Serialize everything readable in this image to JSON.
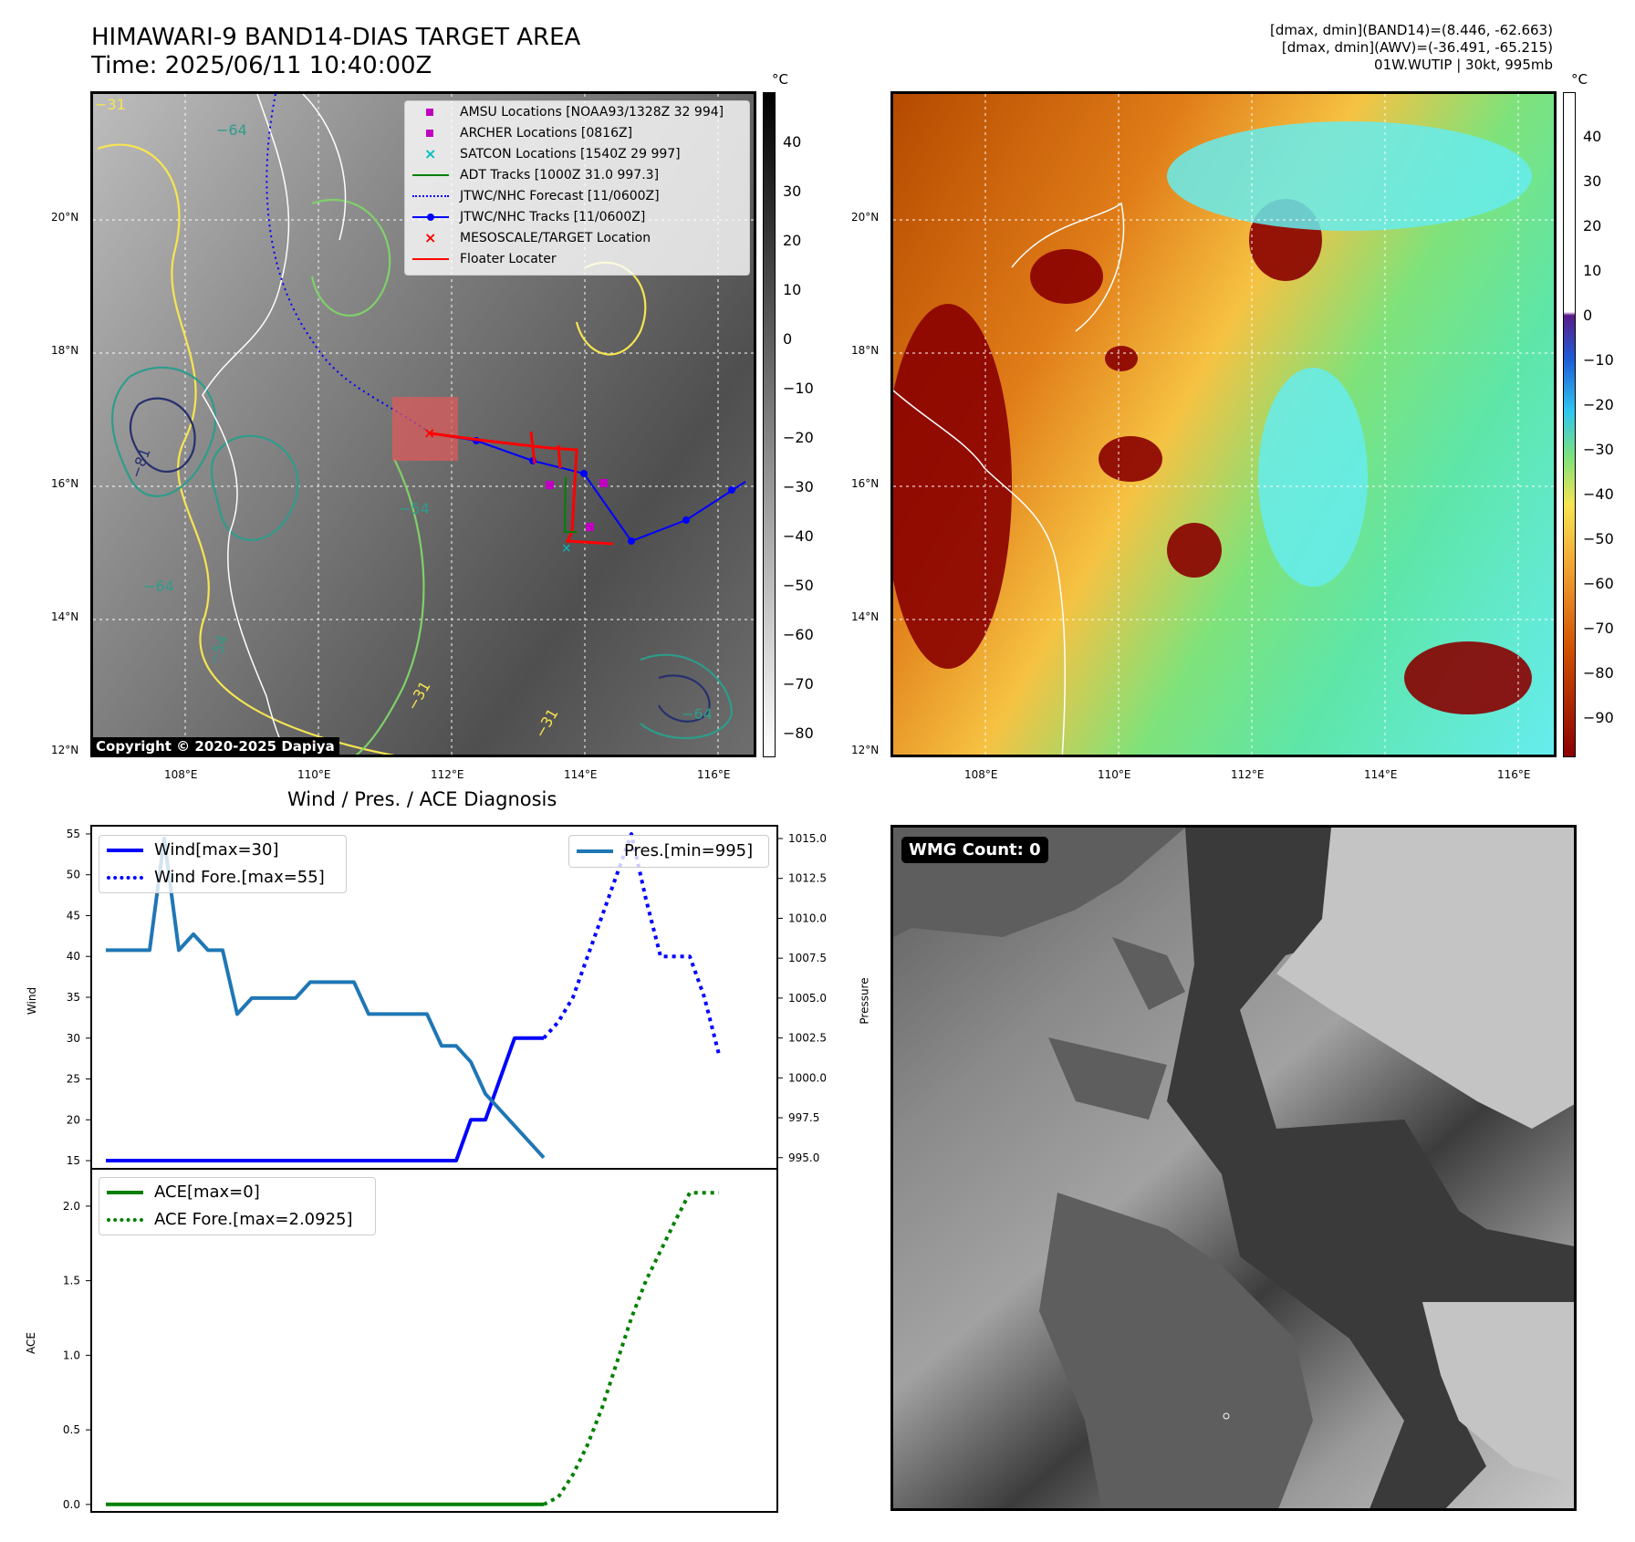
{
  "header": {
    "title_line1": "HIMAWARI-9 BAND14-DIAS TARGET AREA",
    "title_line2": "Time: 2025/06/11 10:40:00Z",
    "info_line1": "[dmax, dmin](BAND14)=(8.446, -62.663)",
    "info_line2": "[dmax, dmin](AWV)=(-36.491, -65.215)",
    "info_line3": "01W.WUTIP | 30kt, 995mb"
  },
  "map_ir": {
    "lat_labels": [
      "20°N",
      "18°N",
      "16°N",
      "14°N",
      "12°N"
    ],
    "lon_labels": [
      "108°E",
      "110°E",
      "112°E",
      "114°E",
      "116°E"
    ],
    "colorbar_unit": "°C",
    "colorbar_ticks": [
      "40",
      "30",
      "20",
      "10",
      "0",
      "−10",
      "−20",
      "−30",
      "−40",
      "−50",
      "−60",
      "−70",
      "−80"
    ],
    "colorbar_colors": [
      "#000000",
      "#ffffff"
    ],
    "copyright": "Copyright © 2020-2025 Dapiya",
    "contour_labels": [
      "−31",
      "−64",
      "−54",
      "−81",
      "−64",
      "−54",
      "−64",
      "−31",
      "−31"
    ],
    "legend": [
      {
        "label": "AMSU Locations [NOAA93/1328Z 32 994]",
        "symbol": "square",
        "color": "#bf00bf"
      },
      {
        "label": "ARCHER Locations [0816Z]",
        "symbol": "square",
        "color": "#bf00bf"
      },
      {
        "label": "SATCON Locations [1540Z 29 997]",
        "symbol": "x",
        "color": "#00bfbf"
      },
      {
        "label": "ADT Tracks [1000Z 31.0 997.3]",
        "symbol": "line",
        "color": "#008000"
      },
      {
        "label": "JTWC/NHC Forecast [11/0600Z]",
        "symbol": "dotted",
        "color": "#0000ff"
      },
      {
        "label": "JTWC/NHC Tracks [11/0600Z]",
        "symbol": "line-dot",
        "color": "#0000ff"
      },
      {
        "label": "MESOSCALE/TARGET Location",
        "symbol": "x",
        "color": "#ff0000"
      },
      {
        "label": "Floater Locater",
        "symbol": "line",
        "color": "#ff0000"
      }
    ]
  },
  "map_awv": {
    "lat_labels": [
      "20°N",
      "18°N",
      "16°N",
      "14°N",
      "12°N"
    ],
    "lon_labels": [
      "108°E",
      "110°E",
      "112°E",
      "114°E",
      "116°E"
    ],
    "colorbar_unit": "°C",
    "colorbar_ticks": [
      "40",
      "30",
      "20",
      "10",
      "0",
      "−10",
      "−20",
      "−30",
      "−40",
      "−50",
      "−60",
      "−70",
      "−80",
      "−90"
    ]
  },
  "wmg": {
    "label": "WMG Count: 0"
  },
  "diagnosis": {
    "title": "Wind / Pres. / ACE Diagnosis",
    "wind_ylabel": "Wind",
    "pres_ylabel": "Pressure",
    "ace_ylabel": "ACE",
    "legend_wind": "Wind[max=30]",
    "legend_wind_fore": "Wind Fore.[max=55]",
    "legend_pres": "Pres.[min=995]",
    "legend_ace": "ACE[max=0]",
    "legend_ace_fore": "ACE Fore.[max=2.0925]"
  },
  "chart_data": [
    {
      "type": "line",
      "title": "Wind / Pres. / ACE Diagnosis",
      "ylabel": "Wind",
      "ylabel_right": "Pressure",
      "ylim": [
        14,
        56
      ],
      "ylim_right": [
        994.3,
        1015.8
      ],
      "xlim": [
        0,
        47
      ],
      "y_ticks": [
        15,
        20,
        25,
        30,
        35,
        40,
        45,
        50,
        55
      ],
      "y_ticks_right": [
        "995.0",
        "997.5",
        "1000.0",
        "1002.5",
        "1005.0",
        "1007.5",
        "1010.0",
        "1012.5",
        "1015.0"
      ],
      "series": [
        {
          "name": "Wind[max=30]",
          "color": "#0000ff",
          "style": "solid",
          "axis": "left",
          "x": [
            1,
            25,
            26,
            27,
            28,
            29,
            30,
            31
          ],
          "y": [
            15,
            15,
            20,
            20,
            25,
            30,
            30,
            30
          ]
        },
        {
          "name": "Wind Fore.[max=55]",
          "color": "#0000ff",
          "style": "dotted",
          "axis": "left",
          "x": [
            31,
            32,
            33,
            34,
            35,
            36,
            37,
            38,
            39,
            40,
            41,
            42,
            43
          ],
          "y": [
            30,
            32,
            35,
            40,
            45,
            50,
            55,
            47,
            40,
            40,
            40,
            35,
            28
          ]
        },
        {
          "name": "Pres.[min=995]",
          "color": "#1f77b4",
          "style": "solid",
          "axis": "right",
          "x": [
            1,
            2,
            3,
            4,
            5,
            6,
            7,
            8,
            9,
            10,
            11,
            12,
            13,
            14,
            15,
            16,
            17,
            18,
            19,
            20,
            21,
            22,
            23,
            24,
            25,
            26,
            27,
            28,
            29,
            30,
            31
          ],
          "y": [
            1008,
            1008,
            1008,
            1008,
            1015,
            1008,
            1009,
            1008,
            1008,
            1004,
            1005,
            1005,
            1005,
            1005,
            1006,
            1006,
            1006,
            1006,
            1004,
            1004,
            1004,
            1004,
            1004,
            1002,
            1002,
            1001,
            999,
            998,
            997,
            996,
            995
          ]
        }
      ]
    },
    {
      "type": "line",
      "ylabel": "ACE",
      "ylim": [
        -0.05,
        2.25
      ],
      "xlim": [
        0,
        47
      ],
      "y_ticks": [
        "0.0",
        "0.5",
        "1.0",
        "1.5",
        "2.0"
      ],
      "series": [
        {
          "name": "ACE[max=0]",
          "color": "#008000",
          "style": "solid",
          "x": [
            1,
            31
          ],
          "y": [
            0,
            0
          ]
        },
        {
          "name": "ACE Fore.[max=2.0925]",
          "color": "#008000",
          "style": "dotted",
          "x": [
            31,
            32,
            33,
            34,
            35,
            36,
            37,
            38,
            39,
            40,
            41,
            42,
            43
          ],
          "y": [
            0,
            0.05,
            0.2,
            0.4,
            0.65,
            0.95,
            1.25,
            1.5,
            1.7,
            1.9,
            2.09,
            2.09,
            2.09
          ]
        }
      ]
    }
  ]
}
